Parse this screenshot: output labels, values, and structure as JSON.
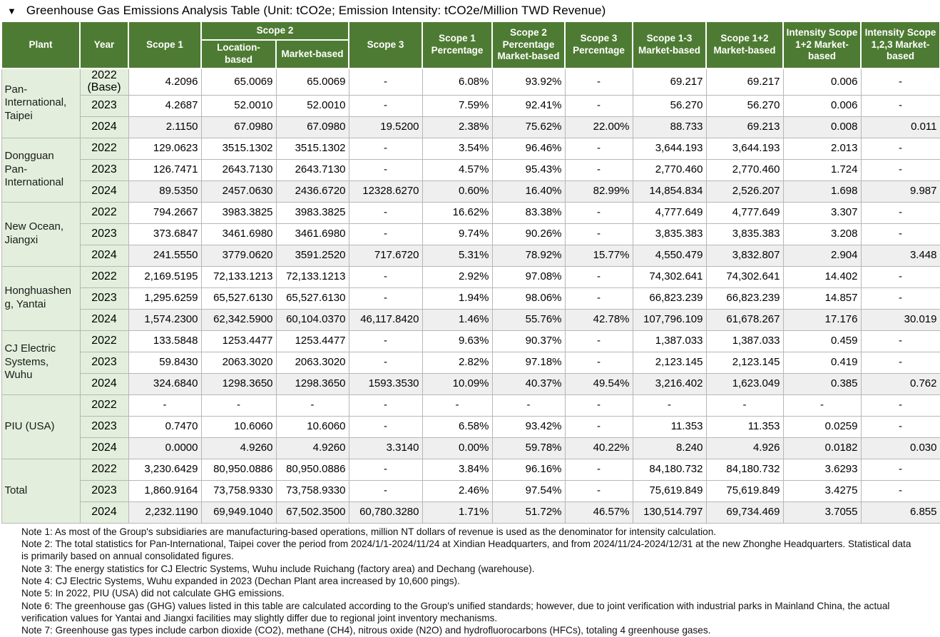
{
  "title": {
    "collapse_icon": "▼",
    "text": "Greenhouse Gas Emissions Analysis Table (Unit: tCO2e; Emission Intensity: tCO2e/Million TWD Revenue)"
  },
  "colors": {
    "header_bg": "#4e7b33",
    "header_text": "#ffffff",
    "plant_year_bg": "#e3efdc",
    "alt_row_bg": "#efefef",
    "grid_border": "#b7b7b7"
  },
  "table": {
    "headers": {
      "plant": "Plant",
      "year": "Year",
      "scope1": "Scope 1",
      "scope2_group": "Scope 2",
      "scope2_location": "Location-based",
      "scope2_market": "Market-based",
      "scope3": "Scope 3",
      "scope1_pct": "Scope 1 Percentage",
      "scope2_pct": "Scope 2 Percentage Market-based",
      "scope3_pct": "Scope 3 Percentage",
      "scope13_market": "Scope 1-3 Market-based",
      "scope12_market": "Scope 1+2 Market-based",
      "intensity_12": "Intensity Scope 1+2 Market-based",
      "intensity_123": "Intensity Scope 1,2,3 Market-based"
    },
    "plants": [
      {
        "name": "Pan-International, Taipei",
        "rows": [
          {
            "year": "2022 (Base)",
            "values": [
              "4.2096",
              "65.0069",
              "65.0069",
              "-",
              "6.08%",
              "93.92%",
              "-",
              "69.217",
              "69.217",
              "0.006",
              "-"
            ]
          },
          {
            "year": "2023",
            "values": [
              "4.2687",
              "52.0010",
              "52.0010",
              "-",
              "7.59%",
              "92.41%",
              "-",
              "56.270",
              "56.270",
              "0.006",
              "-"
            ]
          },
          {
            "year": "2024",
            "values": [
              "2.1150",
              "67.0980",
              "67.0980",
              "19.5200",
              "2.38%",
              "75.62%",
              "22.00%",
              "88.733",
              "69.213",
              "0.008",
              "0.011"
            ]
          }
        ]
      },
      {
        "name": "Dongguan Pan-International",
        "rows": [
          {
            "year": "2022",
            "values": [
              "129.0623",
              "3515.1302",
              "3515.1302",
              "-",
              "3.54%",
              "96.46%",
              "-",
              "3,644.193",
              "3,644.193",
              "2.013",
              "-"
            ]
          },
          {
            "year": "2023",
            "values": [
              "126.7471",
              "2643.7130",
              "2643.7130",
              "-",
              "4.57%",
              "95.43%",
              "-",
              "2,770.460",
              "2,770.460",
              "1.724",
              "-"
            ]
          },
          {
            "year": "2024",
            "values": [
              "89.5350",
              "2457.0630",
              "2436.6720",
              "12328.6270",
              "0.60%",
              "16.40%",
              "82.99%",
              "14,854.834",
              "2,526.207",
              "1.698",
              "9.987"
            ]
          }
        ]
      },
      {
        "name": "New Ocean, Jiangxi",
        "rows": [
          {
            "year": "2022",
            "values": [
              "794.2667",
              "3983.3825",
              "3983.3825",
              "-",
              "16.62%",
              "83.38%",
              "-",
              "4,777.649",
              "4,777.649",
              "3.307",
              "-"
            ]
          },
          {
            "year": "2023",
            "values": [
              "373.6847",
              "3461.6980",
              "3461.6980",
              "-",
              "9.74%",
              "90.26%",
              "-",
              "3,835.383",
              "3,835.383",
              "3.208",
              "-"
            ]
          },
          {
            "year": "2024",
            "values": [
              "241.5550",
              "3779.0620",
              "3591.2520",
              "717.6720",
              "5.31%",
              "78.92%",
              "15.77%",
              "4,550.479",
              "3,832.807",
              "2.904",
              "3.448"
            ]
          }
        ]
      },
      {
        "name": "Honghuasheng, Yantai",
        "rows": [
          {
            "year": "2022",
            "values": [
              "2,169.5195",
              "72,133.1213",
              "72,133.1213",
              "-",
              "2.92%",
              "97.08%",
              "-",
              "74,302.641",
              "74,302.641",
              "14.402",
              "-"
            ]
          },
          {
            "year": "2023",
            "values": [
              "1,295.6259",
              "65,527.6130",
              "65,527.6130",
              "-",
              "1.94%",
              "98.06%",
              "-",
              "66,823.239",
              "66,823.239",
              "14.857",
              "-"
            ]
          },
          {
            "year": "2024",
            "values": [
              "1,574.2300",
              "62,342.5900",
              "60,104.0370",
              "46,117.8420",
              "1.46%",
              "55.76%",
              "42.78%",
              "107,796.109",
              "61,678.267",
              "17.176",
              "30.019"
            ]
          }
        ]
      },
      {
        "name": "CJ Electric Systems, Wuhu",
        "rows": [
          {
            "year": "2022",
            "values": [
              "133.5848",
              "1253.4477",
              "1253.4477",
              "-",
              "9.63%",
              "90.37%",
              "-",
              "1,387.033",
              "1,387.033",
              "0.459",
              "-"
            ]
          },
          {
            "year": "2023",
            "values": [
              "59.8430",
              "2063.3020",
              "2063.3020",
              "-",
              "2.82%",
              "97.18%",
              "-",
              "2,123.145",
              "2,123.145",
              "0.419",
              "-"
            ]
          },
          {
            "year": "2024",
            "values": [
              "324.6840",
              "1298.3650",
              "1298.3650",
              "1593.3530",
              "10.09%",
              "40.37%",
              "49.54%",
              "3,216.402",
              "1,623.049",
              "0.385",
              "0.762"
            ]
          }
        ]
      },
      {
        "name": "PIU (USA)",
        "rows": [
          {
            "year": "2022",
            "values": [
              "-",
              "-",
              "-",
              "-",
              "-",
              "-",
              "-",
              "-",
              "-",
              "-",
              "-"
            ]
          },
          {
            "year": "2023",
            "values": [
              "0.7470",
              "10.6060",
              "10.6060",
              "-",
              "6.58%",
              "93.42%",
              "-",
              "11.353",
              "11.353",
              "0.0259",
              "-"
            ]
          },
          {
            "year": "2024",
            "values": [
              "0.0000",
              "4.9260",
              "4.9260",
              "3.3140",
              "0.00%",
              "59.78%",
              "40.22%",
              "8.240",
              "4.926",
              "0.0182",
              "0.030"
            ]
          }
        ]
      },
      {
        "name": "Total",
        "rows": [
          {
            "year": "2022",
            "values": [
              "3,230.6429",
              "80,950.0886",
              "80,950.0886",
              "-",
              "3.84%",
              "96.16%",
              "-",
              "84,180.732",
              "84,180.732",
              "3.6293",
              "-"
            ]
          },
          {
            "year": "2023",
            "values": [
              "1,860.9164",
              "73,758.9330",
              "73,758.9330",
              "-",
              "2.46%",
              "97.54%",
              "-",
              "75,619.849",
              "75,619.849",
              "3.4275",
              "-"
            ]
          },
          {
            "year": "2024",
            "values": [
              "2,232.1190",
              "69,949.1040",
              "67,502.3500",
              "60,780.3280",
              "1.71%",
              "51.72%",
              "46.57%",
              "130,514.797",
              "69,734.469",
              "3.7055",
              "6.855"
            ]
          }
        ]
      }
    ]
  },
  "notes": [
    "Note 1: As most of the Group's subsidiaries are manufacturing-based operations, million NT dollars of revenue is used as the denominator for intensity calculation.",
    "Note 2: The total statistics for Pan-International, Taipei cover the period from 2024/1/1-2024/11/24 at Xindian Headquarters, and from 2024/11/24-2024/12/31 at the new Zhonghe Headquarters. Statistical data is primarily based on annual consolidated figures.",
    "Note 3: The energy statistics for CJ Electric Systems, Wuhu include Ruichang (factory area) and Dechang (warehouse).",
    "Note 4: CJ Electric Systems, Wuhu expanded in 2023 (Dechan Plant area increased by 10,600 pings).",
    "Note 5: In 2022, PIU (USA) did not calculate GHG emissions.",
    "Note 6: The greenhouse gas (GHG) values listed in this table are calculated according to the Group's unified standards; however, due to joint verification with industrial parks in Mainland China, the actual verification values for Yantai and Jiangxi facilities may slightly differ due to regional joint inventory mechanisms.",
    "Note 7: Greenhouse gas types include carbon dioxide (CO2), methane (CH4), nitrous oxide (N2O) and hydrofluorocarbons (HFCs), totaling 4 greenhouse gases."
  ]
}
